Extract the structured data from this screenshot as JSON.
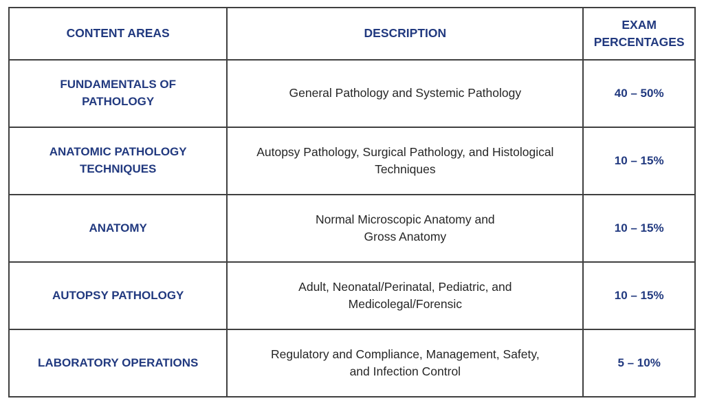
{
  "table": {
    "title": "exam-content-outline-table",
    "colors": {
      "accent_navy": "#21397f",
      "body_text": "#262626",
      "border": "#3f3f3f",
      "background": "#ffffff"
    },
    "headers": {
      "area": "CONTENT AREAS",
      "description": "DESCRIPTION",
      "percent": "EXAM\nPERCENTAGES"
    },
    "rows": [
      {
        "area": "FUNDAMENTALS OF\nPATHOLOGY",
        "description": "General Pathology and Systemic Pathology",
        "percent": "40 – 50%"
      },
      {
        "area": "ANATOMIC PATHOLOGY\nTECHNIQUES",
        "description": "Autopsy Pathology, Surgical Pathology, and Histological\nTechniques",
        "percent": "10 – 15%"
      },
      {
        "area": "ANATOMY",
        "description": "Normal Microscopic Anatomy and\nGross Anatomy",
        "percent": "10 – 15%"
      },
      {
        "area": "AUTOPSY PATHOLOGY",
        "description": "Adult, Neonatal/Perinatal, Pediatric, and\nMedicolegal/Forensic",
        "percent": "10 – 15%"
      },
      {
        "area": "LABORATORY OPERATIONS",
        "description": "Regulatory and Compliance, Management, Safety,\nand Infection Control",
        "percent": "5 – 10%"
      }
    ]
  }
}
